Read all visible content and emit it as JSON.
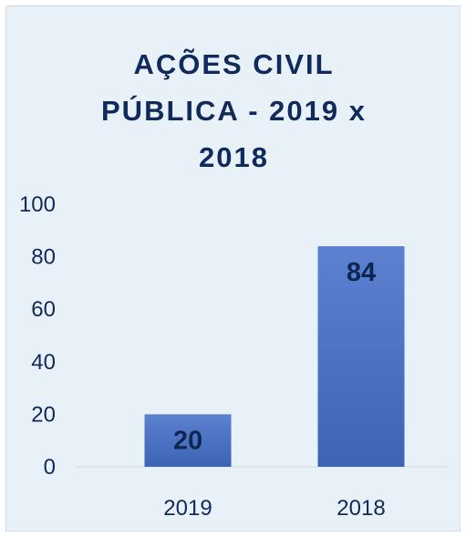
{
  "chart_data": {
    "type": "bar",
    "title": "AÇÕES CIVIL\nPÚBLICA - 2019 x\n2018",
    "categories": [
      "2019",
      "2018"
    ],
    "values": [
      20,
      84
    ],
    "data_labels": [
      "20",
      "84"
    ],
    "y_ticks": [
      "0",
      "20",
      "40",
      "60",
      "80",
      "100"
    ],
    "ylim": [
      0,
      100
    ],
    "xlabel": "",
    "ylabel": "",
    "grid": false,
    "legend": "none",
    "colors": {
      "background": "#e8f0f8",
      "bar_top": "#5b82d0",
      "bar_bottom": "#3d63b4",
      "text": "#102a5c"
    }
  }
}
